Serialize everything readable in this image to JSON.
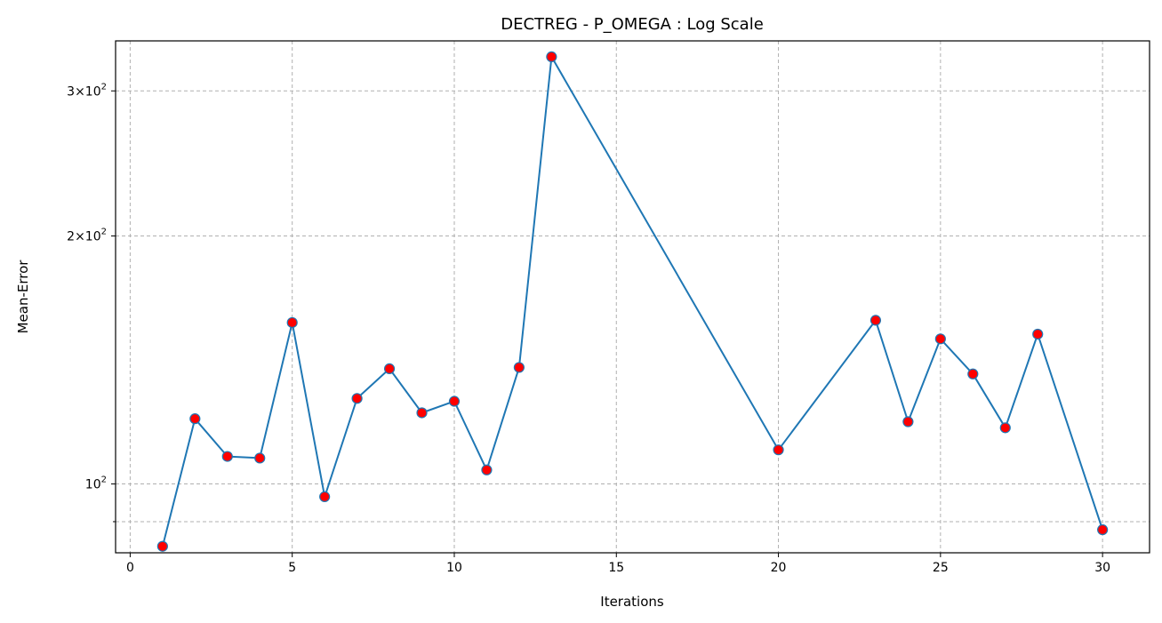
{
  "chart_data": {
    "type": "line",
    "title": "DECTREG - P_OMEGA : Log Scale",
    "xlabel": "Iterations",
    "ylabel": "Mean-Error",
    "yscale": "log",
    "xlim": [
      -0.45,
      31.45
    ],
    "ylim": [
      82.5,
      345
    ],
    "grid": true,
    "x_ticks": [
      0,
      5,
      10,
      15,
      20,
      25,
      30
    ],
    "y_major_ticks": [
      {
        "value": 100,
        "mantissa": "",
        "base": "10",
        "exp": "2"
      },
      {
        "value": 200,
        "mantissa": "2×",
        "base": "10",
        "exp": "2"
      },
      {
        "value": 300,
        "mantissa": "3×",
        "base": "10",
        "exp": "2"
      }
    ],
    "y_minor_ticks": [
      90
    ],
    "line_color": "#1f77b4",
    "marker_color": "#ff0000",
    "series": [
      {
        "x": [
          1,
          2,
          3,
          4,
          5,
          6,
          7,
          8,
          9,
          10,
          11,
          12,
          13,
          20,
          23,
          24,
          25,
          26,
          27,
          28,
          30
        ],
        "y": [
          84,
          120,
          108,
          107.5,
          157,
          96.5,
          127,
          138,
          122,
          126,
          104,
          138.5,
          330,
          110,
          158,
          119,
          150,
          136,
          117,
          152,
          88
        ]
      }
    ]
  }
}
